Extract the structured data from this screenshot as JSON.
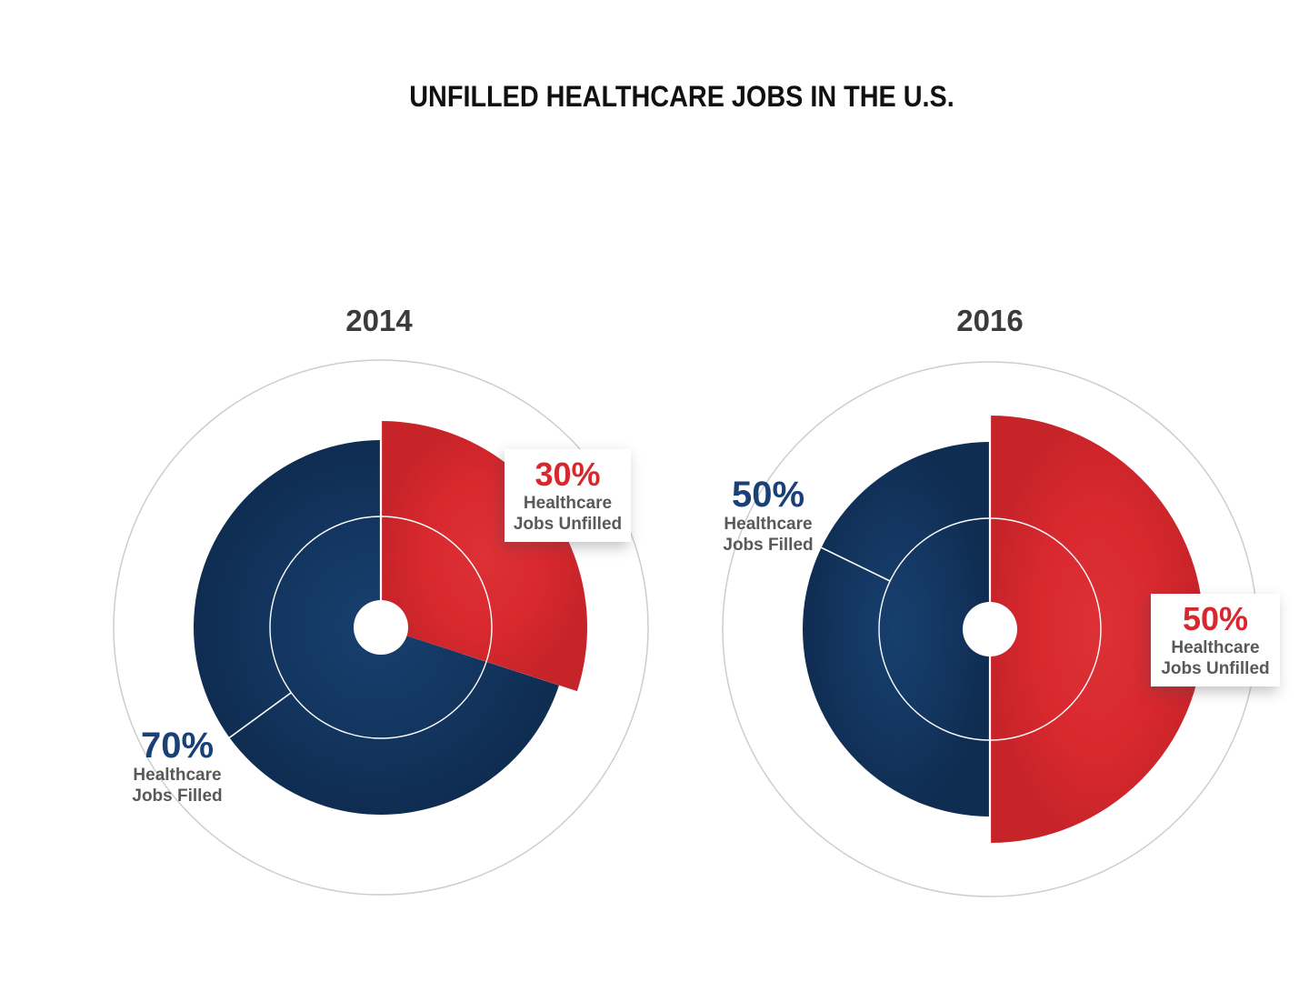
{
  "title": "UNFILLED HEALTHCARE JOBS IN THE U.S.",
  "colors": {
    "navy_pie": "#12355e",
    "red_pie": "#d7282e",
    "navy_text": "#1a4077",
    "red_text": "#d7282e",
    "gray_label_text": "#58595b",
    "year_text": "#3b3b3b",
    "outer_ring": "#cdcdcd",
    "background": "#ffffff"
  },
  "charts": [
    {
      "year": "2014",
      "filled": {
        "value": "70%",
        "line1": "Healthcare",
        "line2": "Jobs Filled"
      },
      "unfilled": {
        "value": "30%",
        "line1": "Healthcare",
        "line2": "Jobs Unfilled"
      }
    },
    {
      "year": "2016",
      "filled": {
        "value": "50%",
        "line1": "Healthcare",
        "line2": "Jobs Filled"
      },
      "unfilled": {
        "value": "50%",
        "line1": "Healthcare",
        "line2": "Jobs Unfilled"
      }
    }
  ],
  "chart_data": [
    {
      "type": "pie",
      "title": "2014",
      "labels": [
        "Healthcare Jobs Filled",
        "Healthcare Jobs Unfilled"
      ],
      "values": [
        70,
        30
      ],
      "colors": [
        "#12355e",
        "#d7282e"
      ],
      "start_angle_deg_from_top": 0,
      "direction": "clockwise",
      "notes": "unfilled slice drawn with larger radius; thin white inner ring and white center hole; light gray outer guide circle"
    },
    {
      "type": "pie",
      "title": "2016",
      "labels": [
        "Healthcare Jobs Filled",
        "Healthcare Jobs Unfilled"
      ],
      "values": [
        50,
        50
      ],
      "colors": [
        "#12355e",
        "#d7282e"
      ],
      "start_angle_deg_from_top": 0,
      "direction": "clockwise",
      "notes": "unfilled slice drawn with larger radius; thin white inner ring and white center hole; light gray outer guide circle"
    }
  ]
}
